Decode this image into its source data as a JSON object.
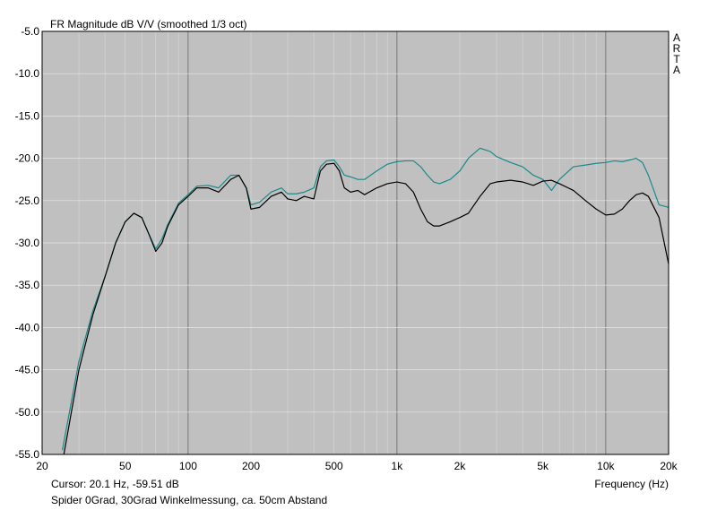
{
  "chart_data": {
    "type": "line",
    "title": "FR Magnitude dB V/V (smoothed 1/3 oct)",
    "xlabel": "Frequency (Hz)",
    "ylabel": "",
    "x_scale": "log",
    "xlim": [
      20,
      20000
    ],
    "ylim": [
      -55,
      -5
    ],
    "grid": true,
    "background_color": "#c0c0c0",
    "x_ticks": [
      20,
      50,
      100,
      200,
      500,
      1000,
      2000,
      5000,
      10000,
      20000
    ],
    "x_tick_labels": [
      "20",
      "50",
      "100",
      "200",
      "500",
      "1k",
      "2k",
      "5k",
      "10k",
      "20k"
    ],
    "y_ticks": [
      -5,
      -10,
      -15,
      -20,
      -25,
      -30,
      -35,
      -40,
      -45,
      -50,
      -55
    ],
    "y_tick_labels": [
      "-5.0",
      "-10.0",
      "-15.0",
      "-20.0",
      "-25.0",
      "-30.0",
      "-35.0",
      "-40.0",
      "-45.0",
      "-50.0",
      "-55.0"
    ],
    "series": [
      {
        "color": "#000000",
        "x": [
          25,
          30,
          35,
          40,
          45,
          50,
          55,
          60,
          65,
          70,
          75,
          80,
          90,
          100,
          110,
          125,
          140,
          160,
          175,
          190,
          200,
          220,
          250,
          280,
          300,
          330,
          360,
          400,
          430,
          460,
          500,
          530,
          560,
          600,
          650,
          700,
          800,
          900,
          1000,
          1100,
          1200,
          1300,
          1400,
          1500,
          1600,
          1800,
          2000,
          2200,
          2500,
          2800,
          3000,
          3500,
          4000,
          4500,
          5000,
          5500,
          6000,
          7000,
          8000,
          9000,
          10000,
          11000,
          12000,
          13000,
          14000,
          15000,
          16000,
          18000,
          20000
        ],
        "y": [
          -56,
          -45,
          -38.5,
          -34,
          -30,
          -27.5,
          -26.5,
          -27,
          -29,
          -31,
          -30,
          -28,
          -25.5,
          -24.5,
          -23.5,
          -23.5,
          -24,
          -22.5,
          -22,
          -23.5,
          -26,
          -25.8,
          -24.5,
          -24,
          -24.8,
          -25,
          -24.5,
          -24.8,
          -21.5,
          -20.7,
          -20.6,
          -21.5,
          -23.5,
          -24,
          -23.8,
          -24.3,
          -23.5,
          -23,
          -22.8,
          -23,
          -24,
          -26,
          -27.5,
          -28,
          -28,
          -27.5,
          -27,
          -26.5,
          -24.5,
          -23,
          -22.8,
          -22.6,
          -22.8,
          -23.2,
          -22.7,
          -22.6,
          -23,
          -23.8,
          -25,
          -26,
          -26.7,
          -26.6,
          -26,
          -25,
          -24.3,
          -24.1,
          -24.5,
          -27,
          -32.5
        ]
      },
      {
        "color": "#1a8a8a",
        "x": [
          25,
          30,
          35,
          40,
          45,
          50,
          55,
          60,
          65,
          70,
          75,
          80,
          90,
          100,
          110,
          125,
          140,
          160,
          175,
          190,
          200,
          220,
          250,
          280,
          300,
          330,
          360,
          400,
          430,
          460,
          500,
          530,
          560,
          600,
          650,
          700,
          800,
          900,
          1000,
          1100,
          1200,
          1300,
          1400,
          1500,
          1600,
          1800,
          2000,
          2200,
          2500,
          2800,
          3000,
          3500,
          4000,
          4500,
          5000,
          5500,
          6000,
          7000,
          8000,
          9000,
          10000,
          11000,
          12000,
          13000,
          14000,
          15000,
          16000,
          18000,
          20000
        ],
        "y": [
          -54.5,
          -44,
          -38,
          -34,
          -30,
          -27.5,
          -26.5,
          -27,
          -29,
          -30.7,
          -29.5,
          -27.8,
          -25.3,
          -24.3,
          -23.3,
          -23.2,
          -23.5,
          -22,
          -22,
          -23.5,
          -25.5,
          -25.2,
          -24,
          -23.5,
          -24.2,
          -24.2,
          -24,
          -23.5,
          -21,
          -20.3,
          -20.2,
          -21,
          -22,
          -22.2,
          -22.5,
          -22.5,
          -21.5,
          -20.7,
          -20.4,
          -20.3,
          -20.3,
          -21,
          -22,
          -22.8,
          -23,
          -22.5,
          -21.5,
          -20,
          -18.8,
          -19.2,
          -19.8,
          -20.5,
          -21,
          -22,
          -22.5,
          -23.8,
          -22.5,
          -21,
          -20.8,
          -20.6,
          -20.5,
          -20.3,
          -20.4,
          -20.2,
          -20,
          -20.5,
          -22,
          -25.5,
          -25.8
        ]
      }
    ]
  },
  "cursor_readout": "Cursor: 20.1 Hz, -59.51 dB",
  "caption": "Spider 0Grad, 30Grad Winkelmessung, ca. 50cm Abstand",
  "brand_letters": [
    "A",
    "R",
    "T",
    "A"
  ]
}
